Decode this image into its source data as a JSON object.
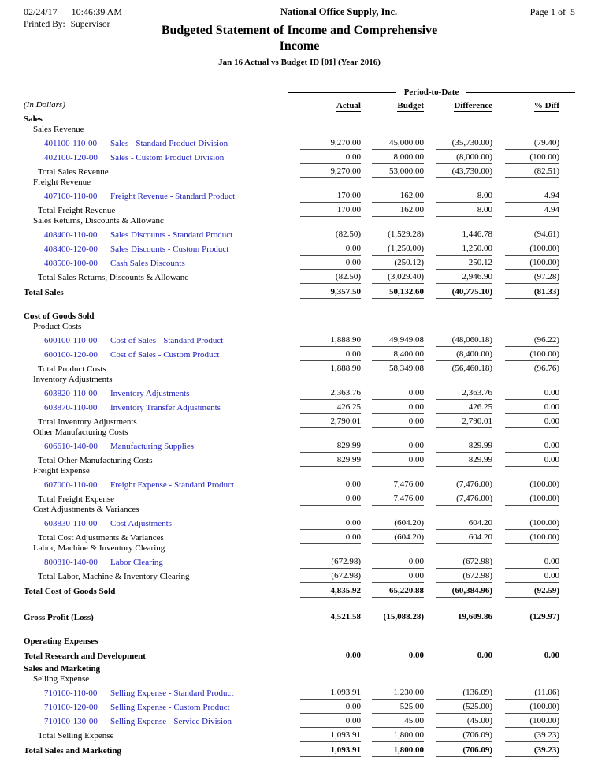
{
  "colors": {
    "link_blue": "#2222bb",
    "rule": "#4a4a4a",
    "text": "#000000"
  },
  "header": {
    "date": "02/24/17",
    "time": "10:46:39 AM",
    "company": "National Office Supply, Inc.",
    "page": "Page 1 of  5",
    "printed_by_label": "Printed By:",
    "printed_by": "Supervisor",
    "title_line1": "Budgeted Statement of Income and Comprehensive",
    "title_line2": "Income",
    "subtitle": "Jan 16 Actual vs Budget ID [01] (Year 2016)"
  },
  "table": {
    "in_dollars_label": "(In Dollars)",
    "period_to_date_label": "Period-to-Date",
    "columns": [
      "Actual",
      "Budget",
      "Difference",
      "% Diff"
    ],
    "rows": [
      {
        "type": "section",
        "label": "Sales"
      },
      {
        "type": "subsection",
        "label": "Sales Revenue"
      },
      {
        "type": "account",
        "account": "401100-110-00",
        "desc": "Sales - Standard Product Division",
        "values": [
          "9,270.00",
          "45,000.00",
          "(35,730.00)",
          "(79.40)"
        ]
      },
      {
        "type": "account",
        "account": "402100-120-00",
        "desc": "Sales - Custom Product Division",
        "values": [
          "0.00",
          "8,000.00",
          "(8,000.00)",
          "(100.00)"
        ]
      },
      {
        "type": "total",
        "label": "Total Sales Revenue",
        "values": [
          "9,270.00",
          "53,000.00",
          "(43,730.00)",
          "(82.51)"
        ]
      },
      {
        "type": "subsection",
        "label": "Freight Revenue"
      },
      {
        "type": "account",
        "account": "407100-110-00",
        "desc": "Freight Revenue - Standard Product",
        "values": [
          "170.00",
          "162.00",
          "8.00",
          "4.94"
        ]
      },
      {
        "type": "total",
        "label": "Total Freight Revenue",
        "values": [
          "170.00",
          "162.00",
          "8.00",
          "4.94"
        ]
      },
      {
        "type": "subsection",
        "label": "Sales Returns, Discounts & Allowanc"
      },
      {
        "type": "account",
        "account": "408400-110-00",
        "desc": "Sales Discounts - Standard Product",
        "values": [
          "(82.50)",
          "(1,529.28)",
          "1,446.78",
          "(94.61)"
        ]
      },
      {
        "type": "account",
        "account": "408400-120-00",
        "desc": "Sales Discounts - Custom Product",
        "values": [
          "0.00",
          "(1,250.00)",
          "1,250.00",
          "(100.00)"
        ]
      },
      {
        "type": "account",
        "account": "408500-100-00",
        "desc": "Cash Sales Discounts",
        "values": [
          "0.00",
          "(250.12)",
          "250.12",
          "(100.00)"
        ]
      },
      {
        "type": "total",
        "label": "Total Sales Returns, Discounts & Allowanc",
        "values": [
          "(82.50)",
          "(3,029.40)",
          "2,946.90",
          "(97.28)"
        ]
      },
      {
        "type": "grand",
        "label": "Total Sales",
        "values": [
          "9,357.50",
          "50,132.60",
          "(40,775.10)",
          "(81.33)"
        ]
      },
      {
        "type": "spacer"
      },
      {
        "type": "section",
        "label": "Cost of Goods Sold"
      },
      {
        "type": "subsection",
        "label": "Product Costs"
      },
      {
        "type": "account",
        "account": "600100-110-00",
        "desc": "Cost of Sales - Standard Product",
        "values": [
          "1,888.90",
          "49,949.08",
          "(48,060.18)",
          "(96.22)"
        ]
      },
      {
        "type": "account",
        "account": "600100-120-00",
        "desc": "Cost of Sales - Custom Product",
        "values": [
          "0.00",
          "8,400.00",
          "(8,400.00)",
          "(100.00)"
        ]
      },
      {
        "type": "total",
        "label": "Total Product Costs",
        "values": [
          "1,888.90",
          "58,349.08",
          "(56,460.18)",
          "(96.76)"
        ]
      },
      {
        "type": "subsection",
        "label": "Inventory Adjustments"
      },
      {
        "type": "account",
        "account": "603820-110-00",
        "desc": "Inventory Adjustments",
        "values": [
          "2,363.76",
          "0.00",
          "2,363.76",
          "0.00"
        ]
      },
      {
        "type": "account",
        "account": "603870-110-00",
        "desc": "Inventory Transfer Adjustments",
        "values": [
          "426.25",
          "0.00",
          "426.25",
          "0.00"
        ]
      },
      {
        "type": "total",
        "label": "Total Inventory Adjustments",
        "values": [
          "2,790.01",
          "0.00",
          "2,790.01",
          "0.00"
        ]
      },
      {
        "type": "subsection",
        "label": "Other Manufacturing Costs"
      },
      {
        "type": "account",
        "account": "606610-140-00",
        "desc": "Manufacturing Supplies",
        "values": [
          "829.99",
          "0.00",
          "829.99",
          "0.00"
        ]
      },
      {
        "type": "total",
        "label": "Total Other Manufacturing Costs",
        "values": [
          "829.99",
          "0.00",
          "829.99",
          "0.00"
        ]
      },
      {
        "type": "subsection",
        "label": "Freight Expense"
      },
      {
        "type": "account",
        "account": "607000-110-00",
        "desc": "Freight Expense - Standard Product",
        "values": [
          "0.00",
          "7,476.00",
          "(7,476.00)",
          "(100.00)"
        ]
      },
      {
        "type": "total",
        "label": "Total Freight Expense",
        "values": [
          "0.00",
          "7,476.00",
          "(7,476.00)",
          "(100.00)"
        ]
      },
      {
        "type": "subsection",
        "label": "Cost Adjustments & Variances"
      },
      {
        "type": "account",
        "account": "603830-110-00",
        "desc": "Cost Adjustments",
        "values": [
          "0.00",
          "(604.20)",
          "604.20",
          "(100.00)"
        ]
      },
      {
        "type": "total",
        "label": "Total Cost Adjustments & Variances",
        "values": [
          "0.00",
          "(604.20)",
          "604.20",
          "(100.00)"
        ]
      },
      {
        "type": "subsection",
        "label": "Labor, Machine & Inventory Clearing"
      },
      {
        "type": "account",
        "account": "800810-140-00",
        "desc": "Labor Clearing",
        "values": [
          "(672.98)",
          "0.00",
          "(672.98)",
          "0.00"
        ]
      },
      {
        "type": "total",
        "label": "Total Labor, Machine & Inventory Clearing",
        "values": [
          "(672.98)",
          "0.00",
          "(672.98)",
          "0.00"
        ]
      },
      {
        "type": "grand",
        "label": "Total Cost of Goods Sold",
        "values": [
          "4,835.92",
          "65,220.88",
          "(60,384.96)",
          "(92.59)"
        ]
      },
      {
        "type": "spacer"
      },
      {
        "type": "grand",
        "label": "Gross Profit (Loss)",
        "values": [
          "4,521.58",
          "(15,088.28)",
          "19,609.86",
          "(129.97)"
        ],
        "line": false
      },
      {
        "type": "spacer"
      },
      {
        "type": "section",
        "label": "Operating Expenses"
      },
      {
        "type": "grand",
        "label": "Total Research and Development",
        "values": [
          "0.00",
          "0.00",
          "0.00",
          "0.00"
        ],
        "line": false
      },
      {
        "type": "section",
        "label": "Sales and Marketing"
      },
      {
        "type": "subsection",
        "label": "Selling Expense"
      },
      {
        "type": "account",
        "account": "710100-110-00",
        "desc": "Selling Expense - Standard Product",
        "values": [
          "1,093.91",
          "1,230.00",
          "(136.09)",
          "(11.06)"
        ]
      },
      {
        "type": "account",
        "account": "710100-120-00",
        "desc": "Selling Expense - Custom Product",
        "values": [
          "0.00",
          "525.00",
          "(525.00)",
          "(100.00)"
        ]
      },
      {
        "type": "account",
        "account": "710100-130-00",
        "desc": "Selling Expense - Service Division",
        "values": [
          "0.00",
          "45.00",
          "(45.00)",
          "(100.00)"
        ]
      },
      {
        "type": "total",
        "label": "Total Selling Expense",
        "values": [
          "1,093.91",
          "1,800.00",
          "(706.09)",
          "(39.23)"
        ]
      },
      {
        "type": "grand",
        "label": "Total Sales and Marketing",
        "values": [
          "1,093.91",
          "1,800.00",
          "(706.09)",
          "(39.23)"
        ]
      }
    ]
  }
}
